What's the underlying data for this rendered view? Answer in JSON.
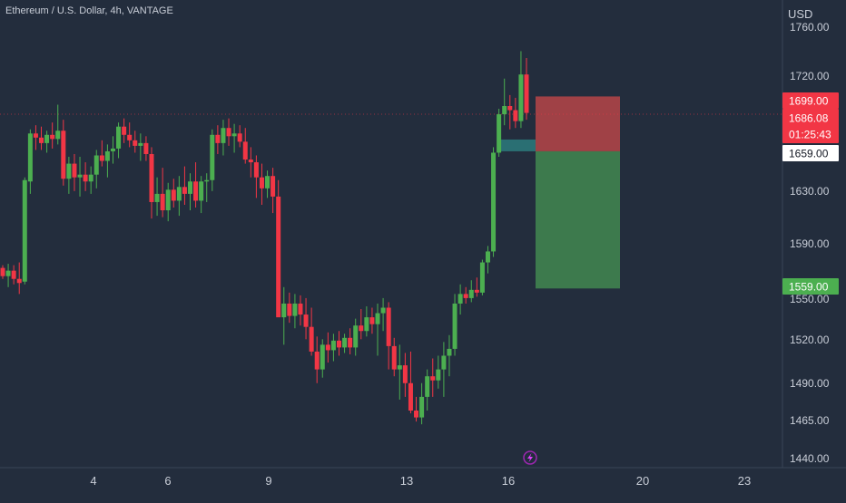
{
  "header": {
    "title": "Ethereum / U.S. Dollar, 4h, VANTAGE"
  },
  "price_axis": {
    "currency": "USD",
    "ticks": [
      "1760.00",
      "1720.00",
      "1699.00",
      "1686.08",
      "01:25:43",
      "1659.00",
      "1630.00",
      "1590.00",
      "1559.00",
      "1550.00",
      "1520.00",
      "1490.00",
      "1465.00",
      "1440.00"
    ]
  },
  "time_axis": {
    "ticks": [
      "4",
      "6",
      "9",
      "13",
      "16",
      "20",
      "23"
    ]
  },
  "labels": {
    "stop_loss": "1699.00",
    "current_price": "1686.08",
    "countdown": "01:25:43",
    "entry": "1659.00",
    "take_profit": "1559.00"
  },
  "colors": {
    "background": "#232d3d",
    "up": "#4caf50",
    "down": "#f23645",
    "risk_zone": "#a04146",
    "reward_zone": "#3d7a4d",
    "axis_text": "#c9ced8",
    "event_icon": "#9c27b0"
  },
  "icons": {
    "event_marker": "lightning-icon"
  },
  "chart_data": {
    "type": "candlestick",
    "title": "Ethereum / U.S. Dollar, 4h, VANTAGE",
    "y_unit": "USD",
    "x_ticks": [
      "4",
      "6",
      "9",
      "13",
      "16",
      "20",
      "23"
    ],
    "ylim": [
      1435,
      1765
    ],
    "current_price": 1686.08,
    "position": {
      "entry": 1659.0,
      "stop_loss": 1699.0,
      "take_profit": 1559.0
    },
    "candles_ohlc": [
      [
        1574,
        1576,
        1566,
        1568
      ],
      [
        1568,
        1577,
        1560,
        1572
      ],
      [
        1572,
        1576,
        1562,
        1566
      ],
      [
        1566,
        1578,
        1555,
        1563
      ],
      [
        1564,
        1640,
        1562,
        1638
      ],
      [
        1637,
        1675,
        1628,
        1672
      ],
      [
        1672,
        1678,
        1660,
        1669
      ],
      [
        1669,
        1677,
        1660,
        1665
      ],
      [
        1665,
        1674,
        1658,
        1671
      ],
      [
        1671,
        1680,
        1661,
        1668
      ],
      [
        1668,
        1693,
        1664,
        1674
      ],
      [
        1674,
        1682,
        1634,
        1639
      ],
      [
        1639,
        1655,
        1628,
        1650
      ],
      [
        1650,
        1657,
        1630,
        1640
      ],
      [
        1640,
        1655,
        1626,
        1642
      ],
      [
        1642,
        1651,
        1630,
        1637
      ],
      [
        1637,
        1648,
        1628,
        1642
      ],
      [
        1642,
        1660,
        1632,
        1656
      ],
      [
        1656,
        1667,
        1648,
        1652
      ],
      [
        1652,
        1664,
        1640,
        1659
      ],
      [
        1659,
        1670,
        1650,
        1661
      ],
      [
        1661,
        1680,
        1654,
        1677
      ],
      [
        1677,
        1683,
        1665,
        1671
      ],
      [
        1671,
        1680,
        1662,
        1667
      ],
      [
        1667,
        1674,
        1658,
        1663
      ],
      [
        1663,
        1672,
        1652,
        1665
      ],
      [
        1665,
        1670,
        1652,
        1657
      ],
      [
        1657,
        1662,
        1610,
        1622
      ],
      [
        1622,
        1640,
        1612,
        1628
      ],
      [
        1628,
        1647,
        1611,
        1616
      ],
      [
        1616,
        1636,
        1608,
        1631
      ],
      [
        1631,
        1639,
        1618,
        1623
      ],
      [
        1623,
        1641,
        1612,
        1633
      ],
      [
        1633,
        1648,
        1620,
        1628
      ],
      [
        1628,
        1643,
        1616,
        1637
      ],
      [
        1637,
        1651,
        1618,
        1623
      ],
      [
        1623,
        1641,
        1614,
        1637
      ],
      [
        1637,
        1643,
        1622,
        1638
      ],
      [
        1638,
        1675,
        1630,
        1671
      ],
      [
        1671,
        1678,
        1657,
        1665
      ],
      [
        1665,
        1682,
        1656,
        1676
      ],
      [
        1676,
        1683,
        1663,
        1670
      ],
      [
        1670,
        1679,
        1658,
        1672
      ],
      [
        1672,
        1678,
        1662,
        1666
      ],
      [
        1666,
        1676,
        1650,
        1653
      ],
      [
        1653,
        1662,
        1640,
        1651
      ],
      [
        1651,
        1656,
        1625,
        1640
      ],
      [
        1640,
        1650,
        1620,
        1632
      ],
      [
        1632,
        1645,
        1625,
        1641
      ],
      [
        1641,
        1647,
        1614,
        1626
      ],
      [
        1626,
        1638,
        1610,
        1538
      ],
      [
        1538,
        1560,
        1518,
        1548
      ],
      [
        1548,
        1556,
        1534,
        1539
      ],
      [
        1539,
        1555,
        1530,
        1548
      ],
      [
        1548,
        1554,
        1532,
        1540
      ],
      [
        1540,
        1552,
        1522,
        1531
      ],
      [
        1531,
        1545,
        1510,
        1513
      ],
      [
        1513,
        1524,
        1490,
        1500
      ],
      [
        1500,
        1522,
        1494,
        1518
      ],
      [
        1518,
        1527,
        1505,
        1514
      ],
      [
        1514,
        1526,
        1506,
        1521
      ],
      [
        1521,
        1528,
        1510,
        1516
      ],
      [
        1516,
        1526,
        1512,
        1523
      ],
      [
        1523,
        1530,
        1511,
        1516
      ],
      [
        1516,
        1537,
        1510,
        1532
      ],
      [
        1532,
        1544,
        1522,
        1528
      ],
      [
        1528,
        1546,
        1524,
        1538
      ],
      [
        1538,
        1545,
        1526,
        1533
      ],
      [
        1533,
        1548,
        1510,
        1541
      ],
      [
        1541,
        1552,
        1528,
        1545
      ],
      [
        1545,
        1549,
        1500,
        1517
      ],
      [
        1517,
        1523,
        1495,
        1500
      ],
      [
        1500,
        1518,
        1478,
        1503
      ],
      [
        1503,
        1512,
        1480,
        1490
      ],
      [
        1490,
        1513,
        1468,
        1470
      ],
      [
        1470,
        1480,
        1462,
        1465
      ],
      [
        1465,
        1490,
        1460,
        1480
      ],
      [
        1480,
        1500,
        1470,
        1495
      ],
      [
        1495,
        1508,
        1480,
        1492
      ],
      [
        1492,
        1510,
        1486,
        1500
      ],
      [
        1500,
        1520,
        1480,
        1510
      ],
      [
        1510,
        1525,
        1495,
        1515
      ],
      [
        1515,
        1555,
        1510,
        1548
      ],
      [
        1548,
        1562,
        1540,
        1555
      ],
      [
        1555,
        1560,
        1548,
        1552
      ],
      [
        1552,
        1565,
        1549,
        1558
      ],
      [
        1558,
        1567,
        1553,
        1556
      ],
      [
        1556,
        1580,
        1554,
        1578
      ],
      [
        1578,
        1590,
        1570,
        1586
      ],
      [
        1586,
        1662,
        1582,
        1658
      ],
      [
        1658,
        1690,
        1655,
        1686
      ],
      [
        1686,
        1712,
        1678,
        1692
      ],
      [
        1692,
        1700,
        1675,
        1689
      ],
      [
        1689,
        1698,
        1676,
        1681
      ],
      [
        1681,
        1732,
        1676,
        1715
      ],
      [
        1715,
        1727,
        1682,
        1687
      ]
    ]
  }
}
